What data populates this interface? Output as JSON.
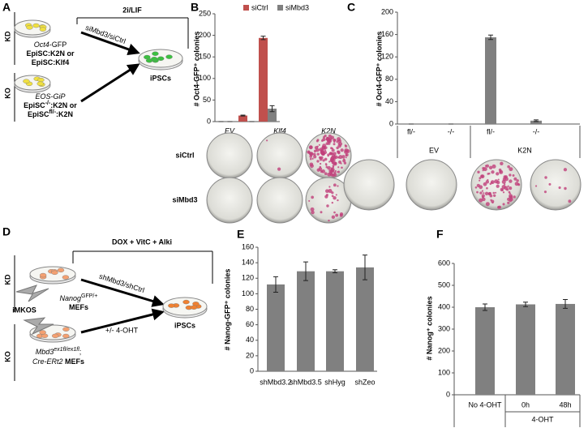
{
  "diagram_a": {
    "letter": "A",
    "arms": [
      "KD",
      "KO"
    ],
    "condition": "2i/LIF",
    "treatment": "siMbd3/siCtrl",
    "product": "iPSCs",
    "kd_text": [
      [
        {
          "text": "Oct4",
          "italic": true
        },
        {
          "text": "-GFP"
        }
      ],
      [
        {
          "text": "EpiSC:K2N or",
          "bold": true
        }
      ],
      [
        {
          "text": "EpiSC:Klf4",
          "bold": true
        }
      ]
    ],
    "ko_text": [
      [
        {
          "text": "EOS-GiP",
          "italic": true
        }
      ],
      [
        {
          "text": "EpiSC",
          "bold": true
        },
        {
          "text": "-/-",
          "sup": true,
          "bold": true
        },
        {
          "text": ":K2N or",
          "bold": true
        }
      ],
      [
        {
          "text": "EpiSC",
          "bold": true
        },
        {
          "text": "fl/-",
          "sup": true,
          "bold": true
        },
        {
          "text": ":K2N",
          "bold": true
        }
      ]
    ]
  },
  "diagram_d": {
    "letter": "D",
    "arms": [
      "KD",
      "KO"
    ],
    "condition": "DOX + VitC + Alki",
    "treatment": "shMbd3/shCtrl",
    "treatment2": "+/- 4-OHT",
    "product": "iPSCs",
    "factors": "iMKOS",
    "kd_text": [
      [
        {
          "text": "Nanog",
          "italic": true
        },
        {
          "text": "GFP/+",
          "sup": true
        }
      ],
      [
        {
          "text": "MEFs",
          "bold": true
        }
      ]
    ],
    "ko_text": [
      [
        {
          "text": "Mbd3",
          "italic": true
        },
        {
          "text": "ex1fl/ex1fl",
          "sup": true,
          "italic": true
        },
        {
          "text": ";"
        }
      ],
      [
        {
          "text": "Cre-ERt2",
          "italic": true
        },
        {
          "text": " MEFs",
          "bold": true
        }
      ]
    ]
  },
  "chart_data": [
    {
      "type": "bar",
      "panel": "B",
      "ylabel": "# Oct4-GFP⁺ colonies",
      "categories": [
        "EV",
        "Klf4",
        "K2N"
      ],
      "series": [
        {
          "name": "siCtrl",
          "color": "#c0504d",
          "values": [
            0,
            14,
            194
          ],
          "errors": [
            0,
            1,
            4
          ]
        },
        {
          "name": "siMbd3",
          "color": "#808080",
          "values": [
            0,
            0,
            30
          ],
          "errors": [
            0,
            0,
            7
          ]
        }
      ],
      "ylim": [
        0,
        250
      ],
      "yticks": [
        0,
        50,
        100,
        150,
        200,
        250
      ],
      "plate_rows": [
        "siCtrl",
        "siMbd3"
      ]
    },
    {
      "type": "bar",
      "panel": "C",
      "ylabel": "# Oct4-GFP⁺ colonies",
      "categories": [
        "fl/-",
        "-/-",
        "fl/-",
        "-/-"
      ],
      "groups": [
        "EV",
        "K2N"
      ],
      "values": [
        0,
        0,
        155,
        6
      ],
      "errors": [
        0,
        0,
        4,
        1.5
      ],
      "color": "#808080",
      "ylim": [
        0,
        200
      ],
      "yticks": [
        0,
        40,
        80,
        120,
        160,
        200
      ]
    },
    {
      "type": "bar",
      "panel": "E",
      "ylabel": "# Nanog-GFP⁺ colonies",
      "categories": [
        "shMbd3.2",
        "shMbd3.5",
        "shHyg",
        "shZeo"
      ],
      "values": [
        112,
        129,
        129,
        134
      ],
      "errors": [
        10,
        12,
        2,
        16
      ],
      "color": "#808080",
      "ylim": [
        0,
        160
      ],
      "yticks": [
        0,
        20,
        40,
        60,
        80,
        100,
        120,
        140,
        160
      ]
    },
    {
      "type": "bar",
      "panel": "F",
      "ylabel": "# Nanog⁺ colonies",
      "categories": [
        "No 4-OHT",
        "0h",
        "48h"
      ],
      "groups": [
        "4-OHT"
      ],
      "values": [
        400,
        413,
        415
      ],
      "errors": [
        15,
        10,
        20
      ],
      "color": "#808080",
      "ylim": [
        0,
        600
      ],
      "yticks": [
        0,
        100,
        200,
        300,
        400,
        500,
        600
      ]
    }
  ]
}
